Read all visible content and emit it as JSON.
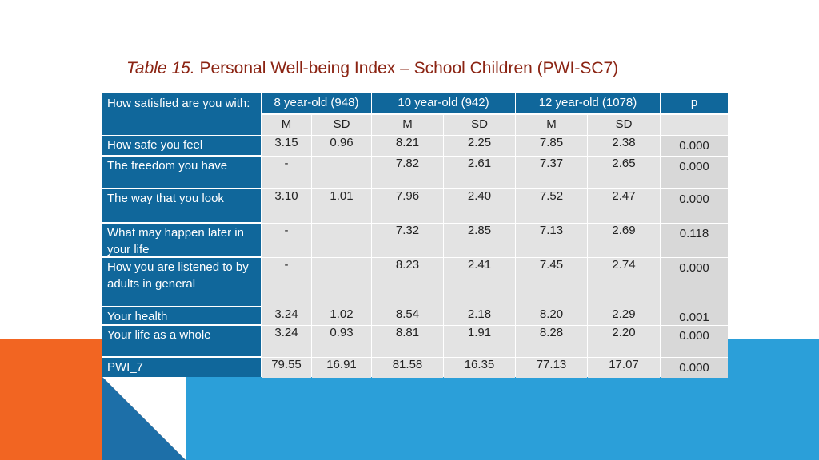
{
  "title": {
    "prefix": "Table 15.",
    "text": "Personal Well-being Index – School Children (PWI-SC7)"
  },
  "colors": {
    "header_blue": "#10679b",
    "title_red": "#8b2413",
    "cell_gray": "#e3e3e3",
    "shape_orange": "#f26522",
    "shape_blue": "#2b9fd9"
  },
  "table": {
    "corner_label": "How satisfied are you with:",
    "groups": [
      {
        "label": "8 year-old (948)"
      },
      {
        "label": "10 year-old (942)"
      },
      {
        "label": "12 year-old (1078)"
      },
      {
        "label": "p"
      }
    ],
    "subheaders": [
      "M",
      "SD",
      "M",
      "SD",
      "M",
      "SD",
      ""
    ],
    "rows": [
      {
        "label": "How safe you feel",
        "values": [
          "3.15",
          "0.96",
          "8.21",
          "2.25",
          "7.85",
          "2.38",
          "0.000"
        ]
      },
      {
        "label": "The freedom you have",
        "values": [
          "-",
          "",
          "7.82",
          "2.61",
          "7.37",
          "2.65",
          "0.000"
        ]
      },
      {
        "label": "The way that you look",
        "values": [
          "3.10",
          "1.01",
          "7.96",
          "2.40",
          "7.52",
          "2.47",
          "0.000"
        ]
      },
      {
        "label": "What may happen later in your life",
        "values": [
          "-",
          "",
          "7.32",
          "2.85",
          "7.13",
          "2.69",
          "0.118"
        ]
      },
      {
        "label": "How you are listened to by adults in general",
        "values": [
          "-",
          "",
          "8.23",
          "2.41",
          "7.45",
          "2.74",
          "0.000"
        ]
      },
      {
        "label": "Your health",
        "values": [
          "3.24",
          "1.02",
          "8.54",
          "2.18",
          "8.20",
          "2.29",
          "0.001"
        ]
      },
      {
        "label": "Your life as a whole",
        "values": [
          "3.24",
          "0.93",
          "8.81",
          "1.91",
          "8.28",
          "2.20",
          "0.000"
        ]
      },
      {
        "label": "PWI_7",
        "values": [
          "79.55",
          "16.91",
          "81.58",
          "16.35",
          "77.13",
          "17.07",
          "0.000"
        ]
      }
    ]
  }
}
